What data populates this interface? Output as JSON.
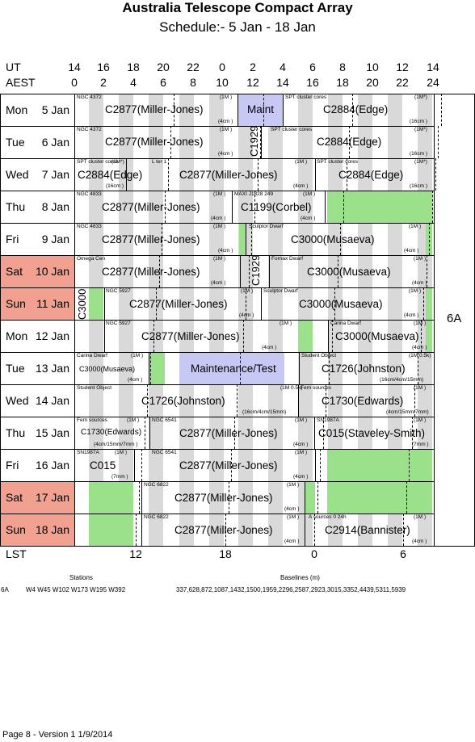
{
  "title": "Australia Telescope Compact Array",
  "subtitle": "Schedule:- 5  Jan - 18 Jan",
  "ut_label": "UT",
  "aest_label": "AEST",
  "lst_label": "LST",
  "ut_ticks": [
    "14",
    "16",
    "18",
    "20",
    "22",
    "0",
    "2",
    "4",
    "6",
    "8",
    "10",
    "12",
    "14"
  ],
  "aest_ticks": [
    "0",
    "2",
    "4",
    "6",
    "8",
    "10",
    "12",
    "14",
    "16",
    "18",
    "20",
    "22",
    "24"
  ],
  "lst_ticks": [
    "12",
    "18",
    "0",
    "6"
  ],
  "configuration": "6A",
  "colors": {
    "weekend": "#f2a08f",
    "green": "#9be08a",
    "maintenance": "#c8c8f5",
    "stripe": "#d9d9d9"
  },
  "days": [
    {
      "dow": "Mon",
      "date": "5  Jan",
      "weekend": false
    },
    {
      "dow": "Tue",
      "date": "6  Jan",
      "weekend": false
    },
    {
      "dow": "Wed",
      "date": "7  Jan",
      "weekend": false
    },
    {
      "dow": "Thu",
      "date": "8  Jan",
      "weekend": false
    },
    {
      "dow": "Fri",
      "date": "9  Jan",
      "weekend": false
    },
    {
      "dow": "Sat",
      "date": "10 Jan",
      "weekend": true
    },
    {
      "dow": "Sun",
      "date": "11 Jan",
      "weekend": true
    },
    {
      "dow": "Mon",
      "date": "12 Jan",
      "weekend": false
    },
    {
      "dow": "Tue",
      "date": "13 Jan",
      "weekend": false
    },
    {
      "dow": "Wed",
      "date": "14 Jan",
      "weekend": false
    },
    {
      "dow": "Thu",
      "date": "15 Jan",
      "weekend": false
    },
    {
      "dow": "Fri",
      "date": "16 Jan",
      "weekend": false
    },
    {
      "dow": "Sat",
      "date": "17 Jan",
      "weekend": true
    },
    {
      "dow": "Sun",
      "date": "18 Jan",
      "weekend": true
    }
  ],
  "labels": {
    "r0": {
      "a": "NGC 4372",
      "b": "C2877(Miller-Jones)",
      "c": "(1M )",
      "d": "(4cm )",
      "e": "Maint",
      "f": "SPT cluster cores",
      "g": "C2884(Edge)",
      "h": "(1M*)",
      "i": "(16cm )"
    },
    "r1": {
      "a": "NGC 4372",
      "b": "C2877(Miller-Jones)",
      "c": "(1M )",
      "d": "(4cm )",
      "e": "C1929",
      "f": "SPT cluster cores",
      "g": "C2884(Edge)",
      "h": "(1M*)",
      "i": "(16cm )"
    },
    "r2": {
      "a": "SPT cluster cores",
      "b": "C2884(Edge)",
      "c": "(1M*)",
      "d": "(16cm )",
      "e": "L ter 1",
      "f": "C2877(Miller-Jones)",
      "g": "(1M )",
      "h": "(4cm )",
      "i": "SPT cluster cores",
      "j": "C2884(Edge)",
      "k": "(1M*)",
      "l": "(16cm )"
    },
    "r3": {
      "a": "NGC 4833",
      "b": "C2877(Miller-Jones)",
      "c": "(1M )",
      "d": "(4cm )",
      "e": "MAXI J1828 249",
      "f": "C1199(Corbel)",
      "g": "(1M )",
      "h": "(4cm )"
    },
    "r4": {
      "a": "NGC 4833",
      "b": "C2877(Miller-Jones)",
      "c": "(1M )",
      "d": "(4cm )",
      "e": "Sculptor Dwarf",
      "f": "C3000(Musaeva)",
      "g": "(1M )",
      "h": "(4cm )"
    },
    "r5": {
      "a": "Omega Cen",
      "b": "C2877(Miller-Jones)",
      "c": "(1M )",
      "d": "(4cm )",
      "e": "C1929",
      "f": "Fornax Dwarf",
      "g": "C3000(Musaeva)",
      "h": "(1M )",
      "i": "(4cm )"
    },
    "r6": {
      "a": "C3000",
      "b": "NGC 5927",
      "c": "C2877(Miller-Jones)",
      "d": "(1M )",
      "e": "(4cm )",
      "f": "Sculptor Dwarf",
      "g": "C3000(Musaeva)",
      "h": "(1M )",
      "i": "(4cm )"
    },
    "r7": {
      "a": "NGC 5927",
      "b": "C2877(Miller-Jones)",
      "c": "(1M )",
      "d": "(4cm )",
      "e": "Carina Dwarf",
      "f": "C3000(Musaeva)",
      "g": "(1M )",
      "h": "(4cm )"
    },
    "r8": {
      "a": "Carina Dwarf",
      "b": "C3000(Musaeva)",
      "c": "(1M )",
      "d": "(4cm )",
      "e": "Maintenance/Test",
      "f": "Student Object",
      "g": "C1726(Johnston)",
      "h": "(1M 0.5k)",
      "i": "(16cm/4cm/15mm)"
    },
    "r9": {
      "a": "Student Object",
      "b": "C1726(Johnston)",
      "c": "(1M 0.5k)",
      "d": "(16cm/4cm/15mm)",
      "e": "Fern sources",
      "f": "C1730(Edwards)",
      "g": "(1M )",
      "h": "(4cm/15mm/7mm)"
    },
    "r10": {
      "a": "Fern sources",
      "b": "C1730(Edwards)",
      "c": "(1M )",
      "d": "(4cm/15mm/7mm )",
      "e": "NGC 6541",
      "f": "C2877(Miller-Jones)",
      "g": "(1M )",
      "h": "(4cm )",
      "i": "SN1987A",
      "j": "C015(Staveley-Smith)",
      "k": "(1M )",
      "l": "(7mm )"
    },
    "r11": {
      "a": "SN1987A",
      "b": "C015",
      "c": "(1M )",
      "d": "(7mm )",
      "e": "NGC 6541",
      "f": "C2877(Miller-Jones)",
      "g": "(1M )",
      "h": "(4cm )"
    },
    "r12": {
      "a": "NGC 6822",
      "b": "C2877(Miller-Jones)",
      "c": "(1M )",
      "d": "(4cm )"
    },
    "r13": {
      "a": "NGC 6822",
      "b": "C2877(Miller-Jones)",
      "c": "(1M )",
      "d": "(4cm )",
      "e": "A  sources 0 24h",
      "f": "C2914(Bannister)",
      "g": "(1M )",
      "h": "(4cm )"
    }
  },
  "footer": {
    "stations_header": "Stations",
    "baselines_header": "Baselines (m)",
    "config": "6A",
    "stations": "W4  W45  W102  W173  W195  W392",
    "baselines": "337,628,872,1087,1432,1500,1959,2296,2587,2923,3015,3352,4439,5311,5939"
  },
  "page_footer": "Page 8 - Version 1  1/9/2014"
}
